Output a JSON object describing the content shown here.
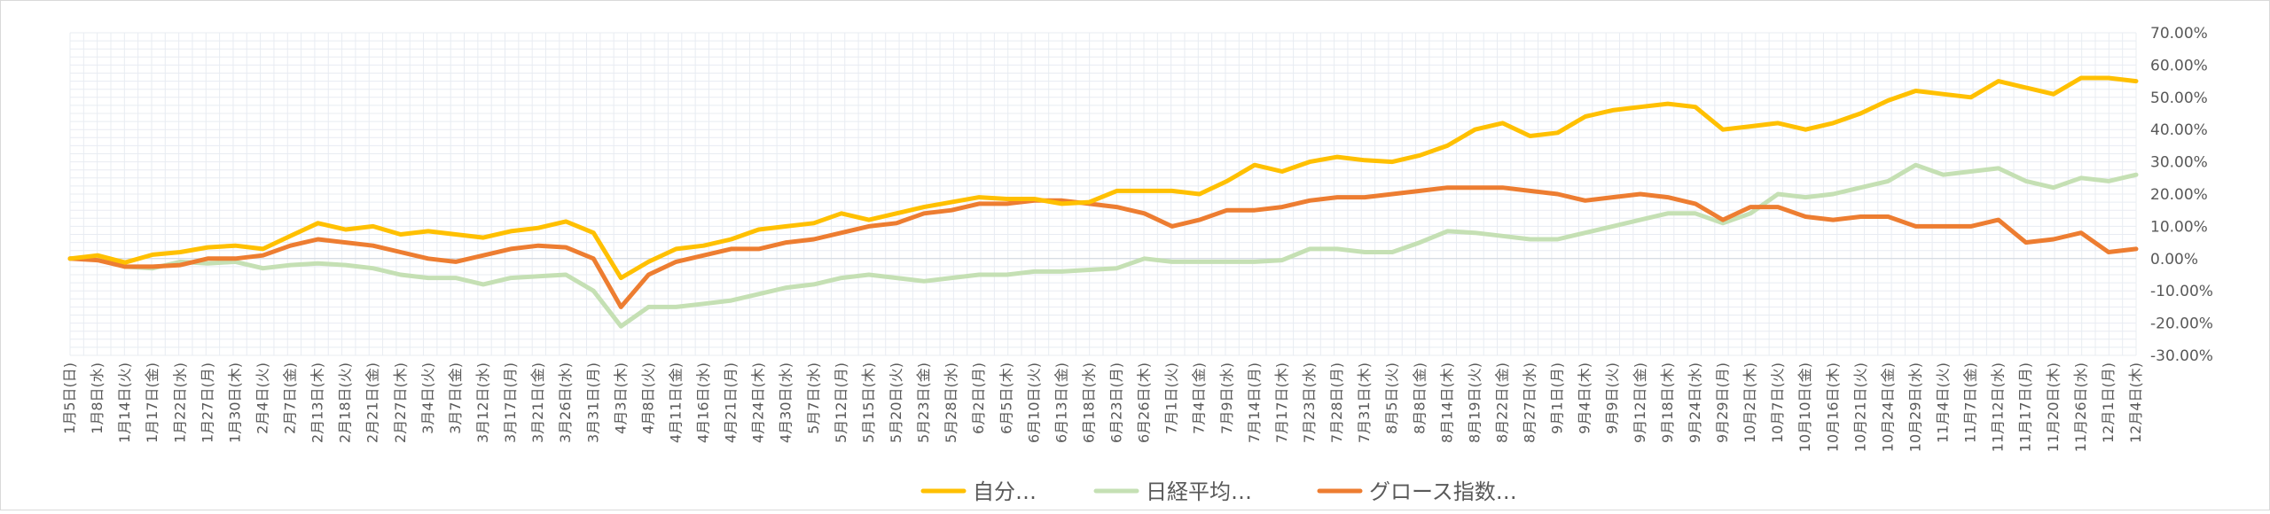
{
  "chart_data": {
    "type": "line",
    "title": "",
    "xlabel": "",
    "ylabel": "",
    "ylim": [
      -0.3,
      0.7
    ],
    "y_ticks": [
      "70.00%",
      "60.00%",
      "50.00%",
      "40.00%",
      "30.00%",
      "20.00%",
      "10.00%",
      "0.00%",
      "-10.00%",
      "-20.00%",
      "-30.00%"
    ],
    "y_tick_values": [
      0.7,
      0.6,
      0.5,
      0.4,
      0.3,
      0.2,
      0.1,
      0.0,
      -0.1,
      -0.2,
      -0.3
    ],
    "grid": true,
    "legend_position": "bottom",
    "categories": [
      "1月5日(日)",
      "1月8日(水)",
      "1月14日(火)",
      "1月17日(金)",
      "1月22日(水)",
      "1月27日(月)",
      "1月30日(木)",
      "2月4日(火)",
      "2月7日(金)",
      "2月13日(木)",
      "2月18日(火)",
      "2月21日(金)",
      "2月27日(木)",
      "3月4日(火)",
      "3月7日(金)",
      "3月12日(水)",
      "3月17日(月)",
      "3月21日(金)",
      "3月26日(水)",
      "3月31日(月)",
      "4月3日(木)",
      "4月8日(火)",
      "4月11日(金)",
      "4月16日(水)",
      "4月21日(月)",
      "4月24日(木)",
      "4月30日(水)",
      "5月7日(水)",
      "5月12日(月)",
      "5月15日(木)",
      "5月20日(火)",
      "5月23日(金)",
      "5月28日(水)",
      "6月2日(月)",
      "6月5日(木)",
      "6月10日(火)",
      "6月13日(金)",
      "6月18日(水)",
      "6月23日(月)",
      "6月26日(木)",
      "7月1日(火)",
      "7月4日(金)",
      "7月9日(水)",
      "7月14日(月)",
      "7月17日(木)",
      "7月23日(水)",
      "7月28日(月)",
      "7月31日(木)",
      "8月5日(火)",
      "8月8日(金)",
      "8月14日(木)",
      "8月19日(火)",
      "8月22日(金)",
      "8月27日(水)",
      "9月1日(月)",
      "9月4日(木)",
      "9月9日(火)",
      "9月12日(金)",
      "9月18日(木)",
      "9月24日(水)",
      "9月29日(月)",
      "10月2日(木)",
      "10月7日(火)",
      "10月10日(金)",
      "10月16日(木)",
      "10月21日(火)",
      "10月24日(金)",
      "10月29日(水)",
      "11月4日(火)",
      "11月7日(金)",
      "11月12日(水)",
      "11月17日(月)",
      "11月20日(木)",
      "11月26日(水)",
      "12月1日(月)",
      "12月4日(木)"
    ],
    "series": [
      {
        "name": "自分…",
        "color": "#FFC000",
        "values": [
          0.0,
          0.01,
          -0.012,
          0.012,
          0.02,
          0.035,
          0.04,
          0.03,
          0.07,
          0.11,
          0.09,
          0.1,
          0.075,
          0.085,
          0.075,
          0.065,
          0.085,
          0.095,
          0.115,
          0.08,
          -0.06,
          -0.01,
          0.03,
          0.04,
          0.06,
          0.09,
          0.1,
          0.11,
          0.14,
          0.12,
          0.14,
          0.16,
          0.175,
          0.19,
          0.185,
          0.185,
          0.17,
          0.175,
          0.21,
          0.21,
          0.21,
          0.2,
          0.24,
          0.29,
          0.27,
          0.3,
          0.315,
          0.305,
          0.3,
          0.32,
          0.35,
          0.4,
          0.42,
          0.38,
          0.39,
          0.44,
          0.46,
          0.47,
          0.48,
          0.47,
          0.4,
          0.41,
          0.42,
          0.4,
          0.42,
          0.45,
          0.49,
          0.52,
          0.51,
          0.5,
          0.55,
          0.53,
          0.51,
          0.56,
          0.56,
          0.55
        ]
      },
      {
        "name": "日経平均…",
        "color": "#C5E0B4",
        "values": [
          0.0,
          0.002,
          -0.025,
          -0.03,
          -0.01,
          -0.015,
          -0.01,
          -0.03,
          -0.02,
          -0.015,
          -0.02,
          -0.03,
          -0.05,
          -0.06,
          -0.06,
          -0.08,
          -0.06,
          -0.055,
          -0.05,
          -0.1,
          -0.21,
          -0.15,
          -0.15,
          -0.14,
          -0.13,
          -0.11,
          -0.09,
          -0.08,
          -0.06,
          -0.05,
          -0.06,
          -0.07,
          -0.06,
          -0.05,
          -0.05,
          -0.04,
          -0.04,
          -0.035,
          -0.03,
          0.0,
          -0.01,
          -0.01,
          -0.01,
          -0.01,
          -0.005,
          0.03,
          0.03,
          0.02,
          0.02,
          0.05,
          0.085,
          0.08,
          0.07,
          0.06,
          0.06,
          0.08,
          0.1,
          0.12,
          0.14,
          0.14,
          0.11,
          0.14,
          0.2,
          0.19,
          0.2,
          0.22,
          0.24,
          0.29,
          0.26,
          0.27,
          0.28,
          0.24,
          0.22,
          0.25,
          0.24,
          0.26
        ]
      },
      {
        "name": "グロース指数…",
        "color": "#ED7D31",
        "values": [
          0.0,
          -0.005,
          -0.025,
          -0.025,
          -0.02,
          0.0,
          0.0,
          0.01,
          0.04,
          0.06,
          0.05,
          0.04,
          0.02,
          0.0,
          -0.01,
          0.01,
          0.03,
          0.04,
          0.035,
          0.0,
          -0.15,
          -0.05,
          -0.01,
          0.01,
          0.03,
          0.03,
          0.05,
          0.06,
          0.08,
          0.1,
          0.11,
          0.14,
          0.15,
          0.17,
          0.17,
          0.18,
          0.18,
          0.17,
          0.16,
          0.14,
          0.1,
          0.12,
          0.15,
          0.15,
          0.16,
          0.18,
          0.19,
          0.19,
          0.2,
          0.21,
          0.22,
          0.22,
          0.22,
          0.21,
          0.2,
          0.18,
          0.19,
          0.2,
          0.19,
          0.17,
          0.12,
          0.16,
          0.16,
          0.13,
          0.12,
          0.13,
          0.13,
          0.1,
          0.1,
          0.1,
          0.12,
          0.05,
          0.06,
          0.08,
          0.02,
          0.03
        ]
      }
    ]
  }
}
